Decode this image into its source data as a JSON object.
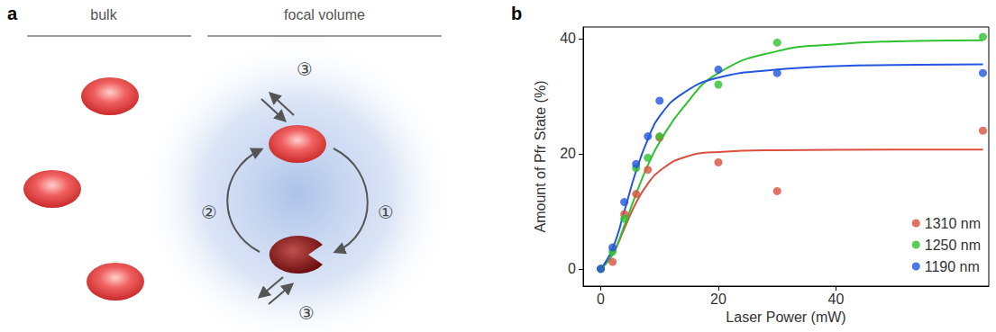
{
  "diagram": {
    "panel_label": "a",
    "headers": [
      "bulk",
      "focal volume"
    ],
    "labels": {
      "forward": "①",
      "back": "②",
      "exchange": [
        "③",
        "③"
      ]
    }
  },
  "chart_data": {
    "type": "scatter",
    "panel_label": "b",
    "x_label": "Laser Power (mW)",
    "y_label": "Amount of Pfr State (%)",
    "xlim": [
      -3,
      66
    ],
    "xticks": [
      0,
      20,
      40
    ],
    "ylim": [
      -3,
      42
    ],
    "yticks": [
      0,
      20,
      40
    ],
    "legend": "lower right",
    "grid": false,
    "x": [
      0,
      2,
      4,
      6,
      8,
      10,
      20,
      30,
      65
    ],
    "series": [
      {
        "name": "1310 nm",
        "color": "#d9503f",
        "marker": "circle",
        "line_style": "solid",
        "values": [
          0,
          1.2,
          9.5,
          13,
          17.2,
          22.8,
          18.5,
          13.5,
          24
        ],
        "fit": [
          [
            0,
            0
          ],
          [
            2,
            2.5
          ],
          [
            4,
            7
          ],
          [
            6,
            11.5
          ],
          [
            8,
            14.8
          ],
          [
            10,
            17
          ],
          [
            14,
            19.3
          ],
          [
            20,
            20.3
          ],
          [
            30,
            20.6
          ],
          [
            50,
            20.7
          ],
          [
            65,
            20.7
          ]
        ]
      },
      {
        "name": "1250 nm",
        "color": "#2ec22e",
        "marker": "circle",
        "line_style": "solid",
        "values": [
          0,
          3,
          8.7,
          17.5,
          19.3,
          23,
          32,
          39.3,
          40.3
        ],
        "fit": [
          [
            0,
            0
          ],
          [
            2,
            2.5
          ],
          [
            4,
            7.5
          ],
          [
            6,
            13
          ],
          [
            8,
            18
          ],
          [
            10,
            22
          ],
          [
            14,
            28
          ],
          [
            20,
            34
          ],
          [
            30,
            37.8
          ],
          [
            40,
            39
          ],
          [
            50,
            39.5
          ],
          [
            65,
            39.7
          ]
        ]
      },
      {
        "name": "1190 nm",
        "color": "#2255e0",
        "marker": "circle",
        "line_style": "solid",
        "values": [
          0,
          3.7,
          11.6,
          18.2,
          23,
          29.2,
          34.6,
          34,
          34
        ],
        "fit": [
          [
            0,
            0
          ],
          [
            2,
            3.5
          ],
          [
            4,
            10
          ],
          [
            6,
            17
          ],
          [
            8,
            22.5
          ],
          [
            10,
            26.5
          ],
          [
            14,
            30.5
          ],
          [
            20,
            33.2
          ],
          [
            30,
            34.6
          ],
          [
            40,
            35.2
          ],
          [
            50,
            35.4
          ],
          [
            65,
            35.5
          ]
        ]
      }
    ]
  }
}
